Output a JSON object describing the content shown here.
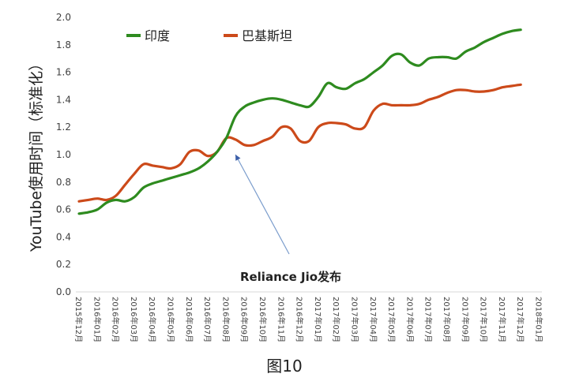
{
  "chart_data": {
    "type": "line",
    "caption": "图10",
    "xlabel": "",
    "ylabel": "YouTube使用时间（标准化）",
    "ylim": [
      0,
      2.0
    ],
    "yticks": [
      "0.0",
      "0.2",
      "0.4",
      "0.6",
      "0.8",
      "1.0",
      "1.2",
      "1.4",
      "1.6",
      "1.8",
      "2.0"
    ],
    "grid": false,
    "legend_position": "top-left",
    "categories": [
      "2015年12月",
      "2016年01月",
      "2016年02月",
      "2016年03月",
      "2016年04月",
      "2016年05月",
      "2016年06月",
      "2016年07月",
      "2016年08月",
      "2016年09月",
      "2016年10月",
      "2016年11月",
      "2016年12月",
      "2017年01月",
      "2017年02月",
      "2017年03月",
      "2017年04月",
      "2017年05月",
      "2017年06月",
      "2017年07月",
      "2017年08月",
      "2017年09月",
      "2017年10月",
      "2017年11月",
      "2017年12月",
      "2018年01月"
    ],
    "series": [
      {
        "name": "印度",
        "color": "#2e8b1f",
        "x": [
          0,
          0.5,
          1,
          1.5,
          2,
          2.5,
          3,
          3.5,
          4,
          4.5,
          5,
          5.5,
          6,
          6.5,
          7,
          7.5,
          8,
          8.5,
          9,
          9.5,
          10,
          10.5,
          11,
          11.5,
          12,
          12.5,
          13,
          13.5,
          14,
          14.5,
          15,
          15.5,
          16,
          16.5,
          17,
          17.5,
          18,
          18.5,
          19,
          19.5,
          20,
          20.5,
          21,
          21.5,
          22,
          22.5,
          23,
          23.5,
          24
        ],
        "values": [
          0.57,
          0.58,
          0.6,
          0.65,
          0.67,
          0.66,
          0.69,
          0.76,
          0.79,
          0.81,
          0.83,
          0.85,
          0.87,
          0.9,
          0.95,
          1.02,
          1.12,
          1.28,
          1.35,
          1.38,
          1.4,
          1.41,
          1.4,
          1.38,
          1.36,
          1.35,
          1.42,
          1.52,
          1.49,
          1.48,
          1.52,
          1.55,
          1.6,
          1.65,
          1.72,
          1.73,
          1.67,
          1.65,
          1.7,
          1.71,
          1.71,
          1.7,
          1.75,
          1.78,
          1.82,
          1.85,
          1.88,
          1.9,
          1.91
        ]
      },
      {
        "name": "巴基斯坦",
        "color": "#cc4a1a",
        "x": [
          0,
          0.5,
          1,
          1.5,
          2,
          2.5,
          3,
          3.5,
          4,
          4.5,
          5,
          5.5,
          6,
          6.5,
          7,
          7.5,
          8,
          8.5,
          9,
          9.5,
          10,
          10.5,
          11,
          11.5,
          12,
          12.5,
          13,
          13.5,
          14,
          14.5,
          15,
          15.5,
          16,
          16.5,
          17,
          17.5,
          18,
          18.5,
          19,
          19.5,
          20,
          20.5,
          21,
          21.5,
          22,
          22.5,
          23,
          23.5,
          24
        ],
        "values": [
          0.66,
          0.67,
          0.68,
          0.67,
          0.7,
          0.78,
          0.86,
          0.93,
          0.92,
          0.91,
          0.9,
          0.93,
          1.02,
          1.03,
          0.99,
          1.02,
          1.12,
          1.11,
          1.07,
          1.07,
          1.1,
          1.13,
          1.2,
          1.19,
          1.1,
          1.1,
          1.2,
          1.23,
          1.23,
          1.22,
          1.19,
          1.2,
          1.32,
          1.37,
          1.36,
          1.36,
          1.36,
          1.37,
          1.4,
          1.42,
          1.45,
          1.47,
          1.47,
          1.46,
          1.46,
          1.47,
          1.49,
          1.5,
          1.51
        ]
      }
    ],
    "annotation": {
      "text": "Reliance Jio发布",
      "point": {
        "x": 8.5,
        "y": 1.0
      },
      "color": "#7a9ccc"
    }
  }
}
